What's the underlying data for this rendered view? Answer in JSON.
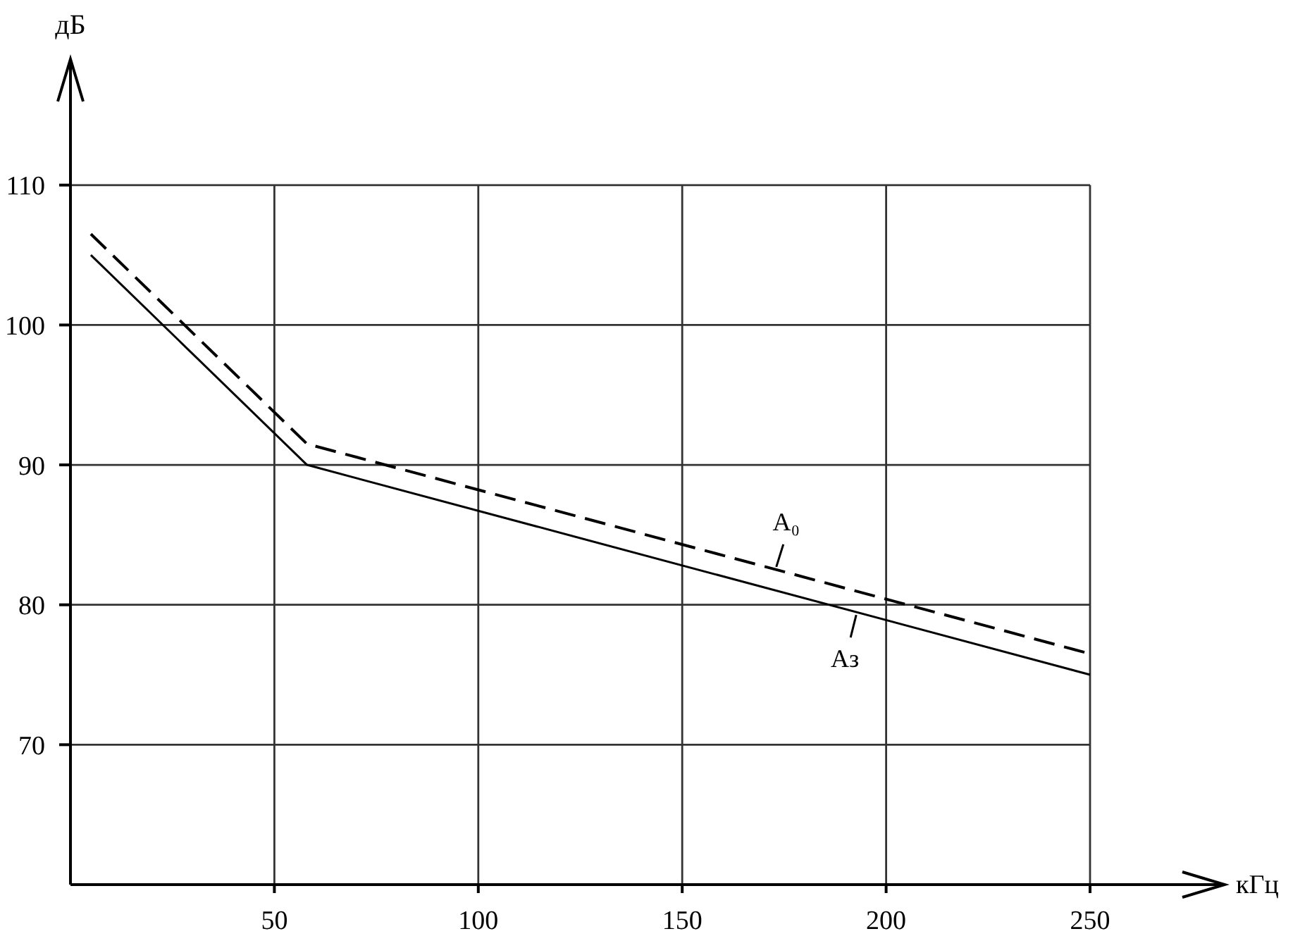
{
  "chart_data": {
    "type": "line",
    "xlabel": "кГц",
    "ylabel": "дБ",
    "x": [
      5,
      58,
      250
    ],
    "series": [
      {
        "name": "А₀",
        "color": "#000000",
        "line_style": "dashed",
        "values": [
          106.5,
          91.5,
          76.5
        ]
      },
      {
        "name": "Аз",
        "color": "#000000",
        "line_style": "solid",
        "values": [
          105,
          90,
          75
        ]
      }
    ],
    "xlim": [
      0,
      283
    ],
    "xticks": [
      50,
      100,
      150,
      200,
      250
    ],
    "ylim": [
      60,
      119
    ],
    "yticks": [
      70,
      80,
      90,
      100,
      110
    ],
    "grid": true
  }
}
